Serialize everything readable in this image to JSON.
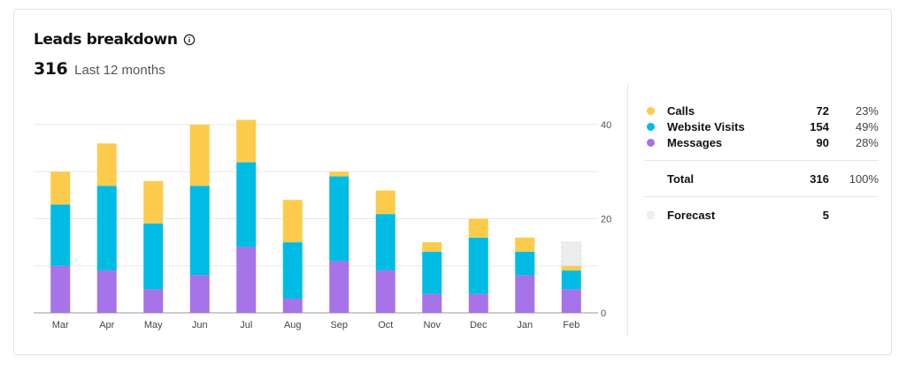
{
  "header": {
    "title": "Leads breakdown",
    "total": "316",
    "period": "Last 12 months"
  },
  "colors": {
    "calls": "#FDCB4C",
    "website_visits": "#00BCE4",
    "messages": "#A673E8",
    "forecast": "#EDEDED"
  },
  "legend": {
    "items": [
      {
        "name": "Calls",
        "value": "72",
        "pct": "23%"
      },
      {
        "name": "Website Visits",
        "value": "154",
        "pct": "49%"
      },
      {
        "name": "Messages",
        "value": "90",
        "pct": "28%"
      }
    ],
    "total": {
      "name": "Total",
      "value": "316",
      "pct": "100%"
    },
    "forecast": {
      "name": "Forecast",
      "value": "5"
    }
  },
  "chart_data": {
    "type": "bar",
    "stacked": true,
    "categories": [
      "Mar",
      "Apr",
      "May",
      "Jun",
      "Jul",
      "Aug",
      "Sep",
      "Oct",
      "Nov",
      "Dec",
      "Jan",
      "Feb"
    ],
    "series": [
      {
        "name": "Messages",
        "values": [
          10,
          9,
          5,
          8,
          14,
          3,
          11,
          9,
          4,
          4,
          8,
          5
        ]
      },
      {
        "name": "Website Visits",
        "values": [
          13,
          18,
          14,
          19,
          18,
          12,
          18,
          12,
          9,
          12,
          5,
          4
        ]
      },
      {
        "name": "Calls",
        "values": [
          7,
          9,
          9,
          13,
          9,
          9,
          1,
          5,
          2,
          4,
          3,
          1
        ]
      }
    ],
    "forecast": {
      "category": "Feb",
      "value": 5
    },
    "yticks": [
      0,
      20,
      40
    ],
    "ylim": [
      0,
      44
    ],
    "grid": true,
    "y_axis_position": "right"
  }
}
